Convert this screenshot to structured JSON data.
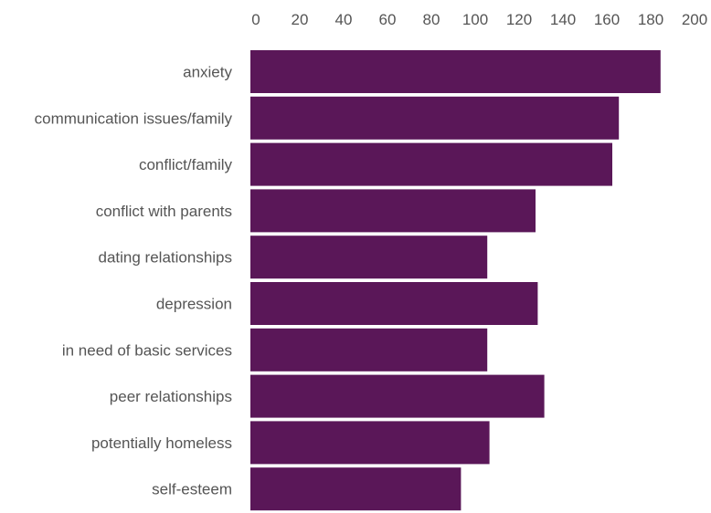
{
  "chart_data": {
    "type": "bar",
    "orientation": "horizontal",
    "title": "",
    "xlabel": "",
    "ylabel": "",
    "categories": [
      "anxiety",
      "communication issues/family",
      "conflict/family",
      "conflict with parents",
      "dating relationships",
      "depression",
      "in need of basic services",
      "peer relationships",
      "potentially homeless",
      "self-esteem"
    ],
    "values": [
      187,
      168,
      165,
      130,
      108,
      131,
      108,
      134,
      109,
      96
    ],
    "xlim": [
      0,
      200
    ],
    "x_ticks": [
      "0",
      "20",
      "40",
      "60",
      "80",
      "100",
      "120",
      "140",
      "160",
      "180",
      "200"
    ],
    "x_axis_position": "top",
    "grid": false,
    "legend": "none",
    "bar_color": "#5a1758"
  }
}
